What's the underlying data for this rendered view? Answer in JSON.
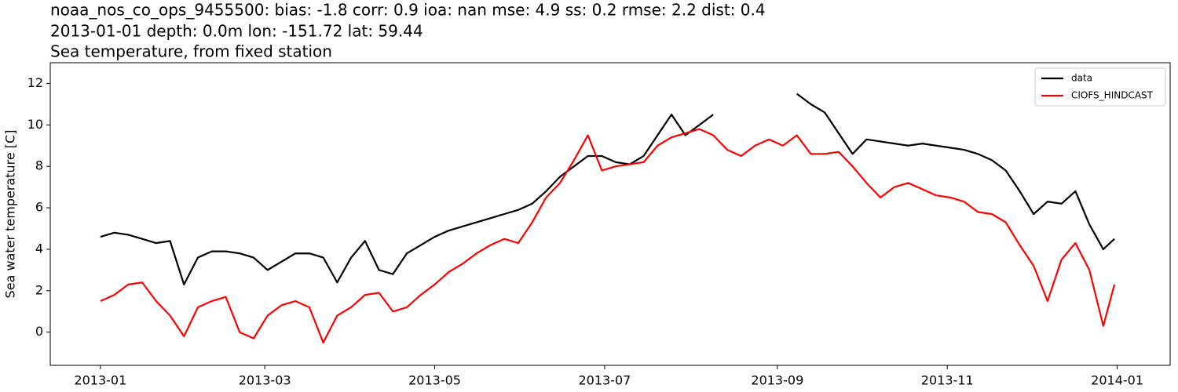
{
  "chart_data": {
    "type": "line",
    "title_lines": [
      "noaa_nos_co_ops_9455500: bias: -1.8  corr: 0.9  ioa: nan  mse: 4.9  ss: 0.2  rmse: 2.2  dist: 0.4",
      "2013-01-01 depth: 0.0m lon: -151.72 lat: 59.44",
      "Sea temperature, from fixed station"
    ],
    "ylabel": "Sea water temperature [C]",
    "x": [
      "2013-01-01",
      "2013-01-06",
      "2013-01-11",
      "2013-01-16",
      "2013-01-21",
      "2013-01-26",
      "2013-01-31",
      "2013-02-05",
      "2013-02-10",
      "2013-02-15",
      "2013-02-20",
      "2013-02-25",
      "2013-03-02",
      "2013-03-07",
      "2013-03-12",
      "2013-03-17",
      "2013-03-22",
      "2013-03-27",
      "2013-04-01",
      "2013-04-06",
      "2013-04-11",
      "2013-04-16",
      "2013-04-21",
      "2013-04-26",
      "2013-05-01",
      "2013-05-06",
      "2013-05-11",
      "2013-05-16",
      "2013-05-21",
      "2013-05-26",
      "2013-05-31",
      "2013-06-05",
      "2013-06-10",
      "2013-06-15",
      "2013-06-20",
      "2013-06-25",
      "2013-06-30",
      "2013-07-05",
      "2013-07-10",
      "2013-07-15",
      "2013-07-20",
      "2013-07-25",
      "2013-07-30",
      "2013-08-04",
      "2013-08-09",
      "2013-08-14",
      "2013-08-19",
      "2013-08-24",
      "2013-08-29",
      "2013-09-03",
      "2013-09-08",
      "2013-09-13",
      "2013-09-18",
      "2013-09-23",
      "2013-09-28",
      "2013-10-03",
      "2013-10-08",
      "2013-10-13",
      "2013-10-18",
      "2013-10-23",
      "2013-10-28",
      "2013-11-02",
      "2013-11-07",
      "2013-11-12",
      "2013-11-17",
      "2013-11-22",
      "2013-11-27",
      "2013-12-02",
      "2013-12-07",
      "2013-12-12",
      "2013-12-17",
      "2013-12-22",
      "2013-12-27",
      "2013-12-31"
    ],
    "series": [
      {
        "name": "data",
        "color": "#000000",
        "values": [
          4.6,
          4.8,
          4.7,
          4.5,
          4.3,
          4.4,
          2.3,
          3.6,
          3.9,
          3.9,
          3.8,
          3.6,
          3.0,
          3.4,
          3.8,
          3.8,
          3.6,
          2.4,
          3.6,
          4.4,
          3.0,
          2.8,
          3.8,
          4.2,
          4.6,
          4.9,
          5.1,
          5.3,
          5.5,
          5.7,
          5.9,
          6.2,
          6.8,
          7.5,
          8.0,
          8.5,
          8.5,
          8.2,
          8.1,
          8.5,
          9.5,
          10.5,
          9.5,
          10.0,
          10.5,
          null,
          null,
          null,
          null,
          null,
          11.5,
          11.0,
          10.6,
          9.6,
          8.6,
          9.3,
          9.2,
          9.1,
          9.0,
          9.1,
          9.0,
          8.9,
          8.8,
          8.6,
          8.3,
          7.8,
          6.8,
          5.7,
          6.3,
          6.2,
          6.8,
          5.2,
          4.0,
          4.5
        ]
      },
      {
        "name": "CIOFS_HINDCAST",
        "color": "#ff0000",
        "values": [
          1.5,
          1.8,
          2.3,
          2.4,
          1.5,
          0.8,
          -0.2,
          1.2,
          1.5,
          1.7,
          0.0,
          -0.3,
          0.8,
          1.3,
          1.5,
          1.2,
          -0.5,
          0.8,
          1.2,
          1.8,
          1.9,
          1.0,
          1.2,
          1.8,
          2.3,
          2.9,
          3.3,
          3.8,
          4.2,
          4.5,
          4.3,
          5.3,
          6.5,
          7.2,
          8.3,
          9.5,
          7.8,
          8.0,
          8.1,
          8.2,
          9.0,
          9.4,
          9.6,
          9.8,
          9.5,
          8.8,
          8.5,
          9.0,
          9.3,
          9.0,
          9.5,
          8.6,
          8.6,
          8.7,
          8.0,
          7.2,
          6.5,
          7.0,
          7.2,
          6.9,
          6.6,
          6.5,
          6.3,
          5.8,
          5.7,
          5.3,
          4.2,
          3.2,
          1.5,
          3.5,
          4.3,
          3.0,
          0.3,
          2.3
        ]
      }
    ],
    "xlim": [
      "2012-12-14",
      "2014-01-20"
    ],
    "xticks": [
      "2013-01",
      "2013-03",
      "2013-05",
      "2013-07",
      "2013-09",
      "2013-11",
      "2014-01"
    ],
    "ylim": [
      -1.6,
      13
    ],
    "yticks": [
      0,
      2,
      4,
      6,
      8,
      10,
      12
    ],
    "grid": false,
    "legend": "upper right"
  }
}
